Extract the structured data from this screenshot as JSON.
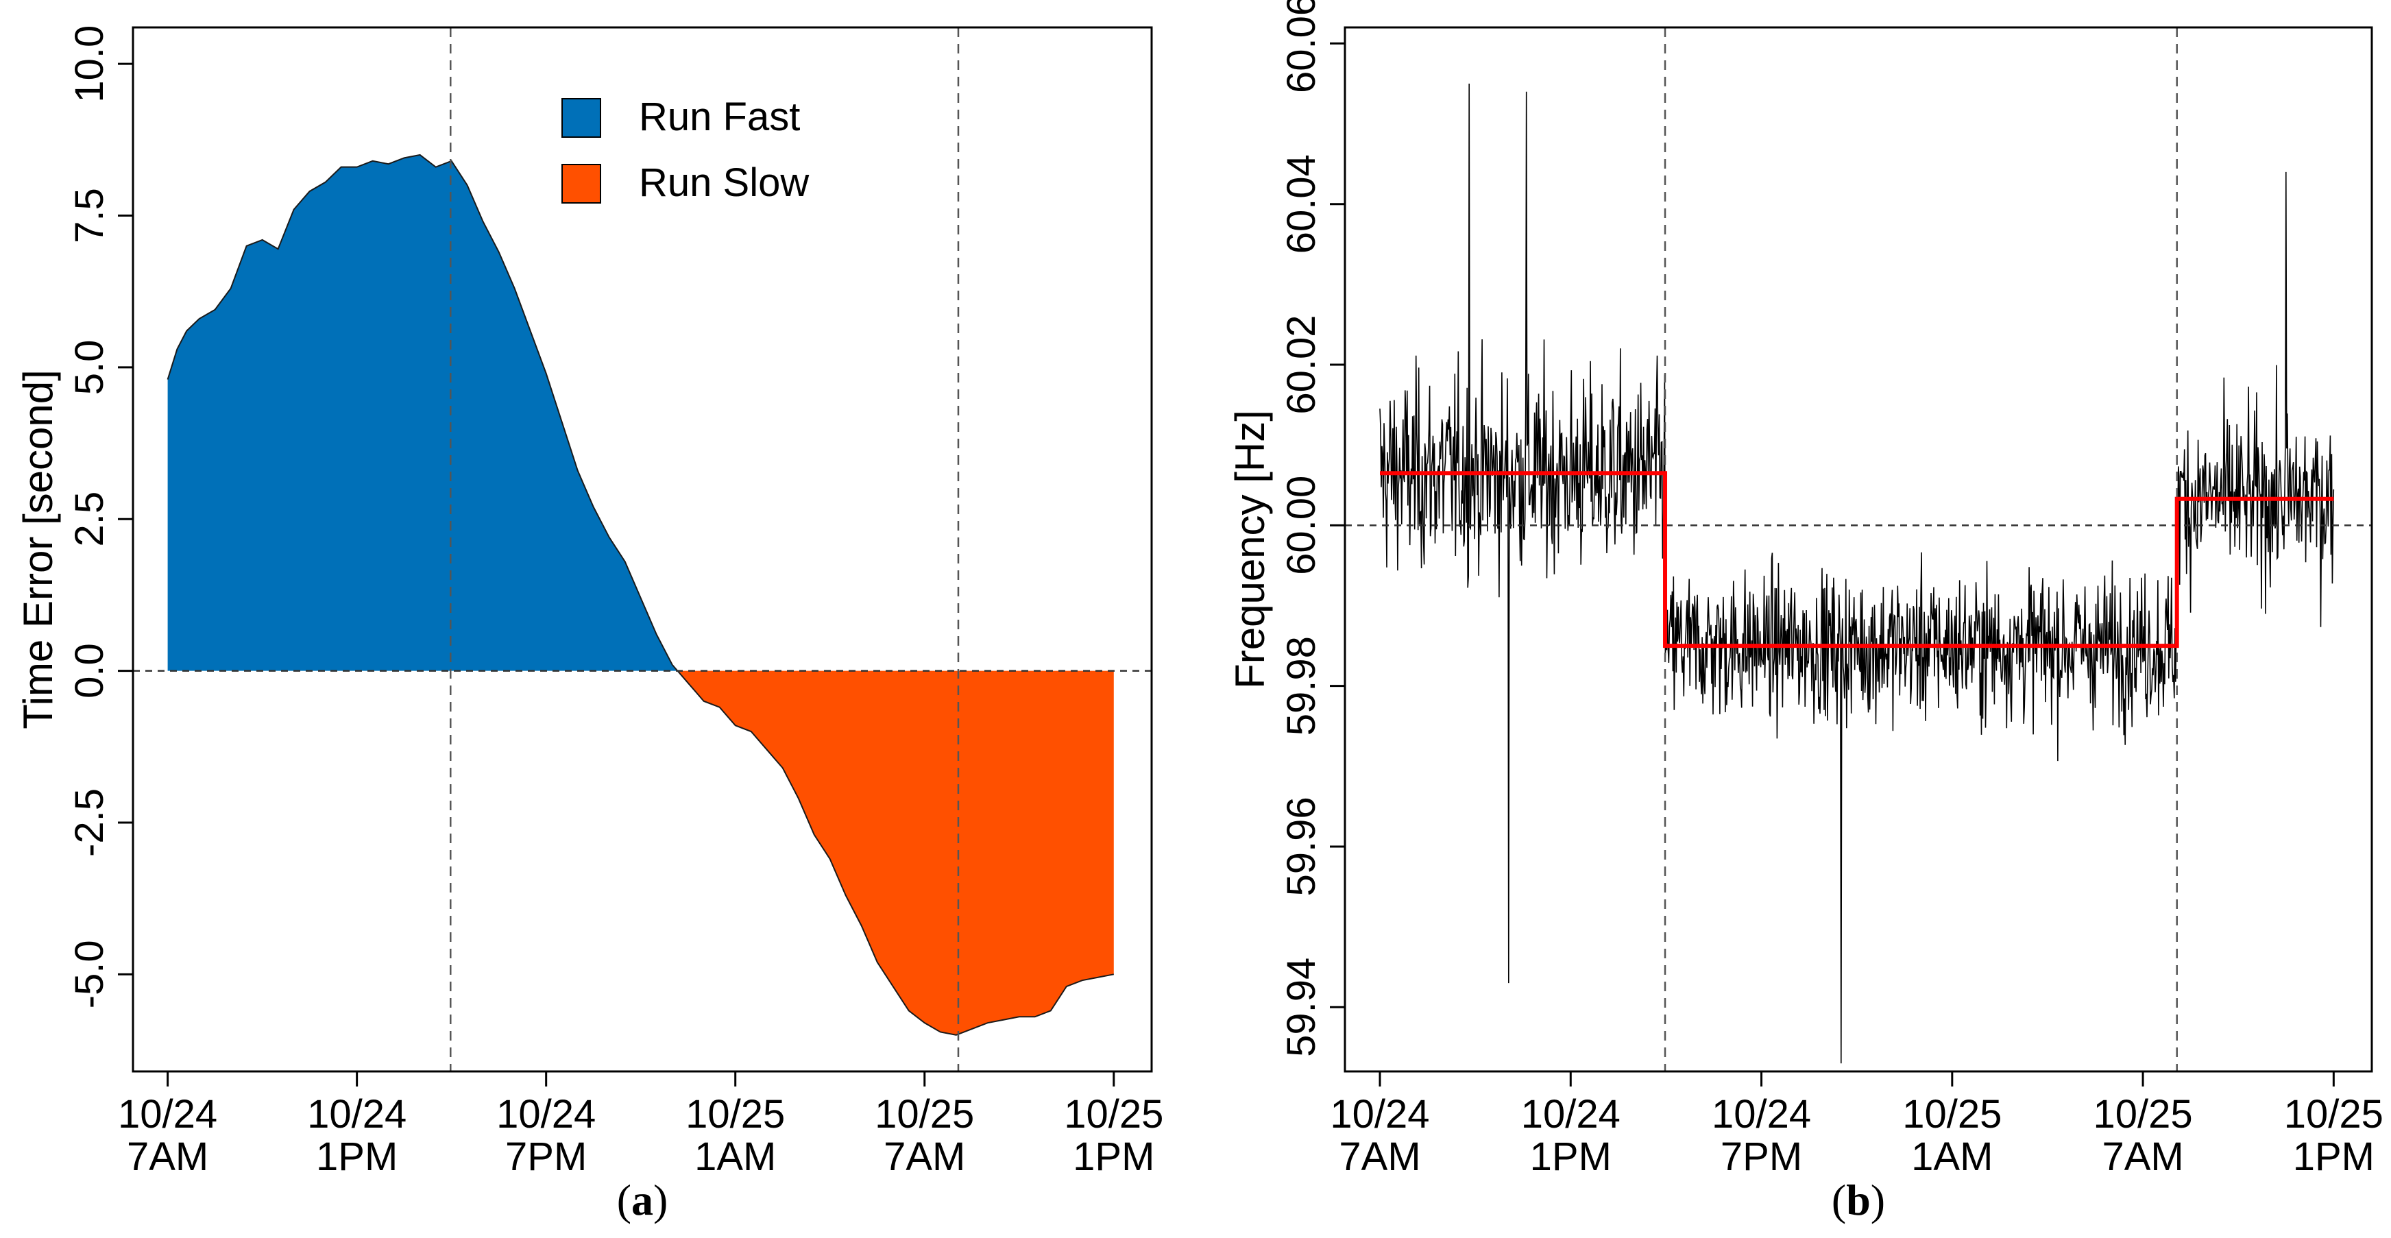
{
  "chart_data": [
    {
      "type": "area",
      "panel_label": "a",
      "ylabel": "Time Error [second]",
      "xlabel": "",
      "x_unit": "hours since 10/24 7AM",
      "xlim": [
        -1.1,
        31.2
      ],
      "ylim": [
        -6.6,
        10.6
      ],
      "yticks": [
        {
          "value": -5.0,
          "label": "-5.0"
        },
        {
          "value": -2.5,
          "label": "-2.5"
        },
        {
          "value": 0.0,
          "label": "0.0"
        },
        {
          "value": 2.5,
          "label": "2.5"
        },
        {
          "value": 5.0,
          "label": "5.0"
        },
        {
          "value": 7.5,
          "label": "7.5"
        },
        {
          "value": 10.0,
          "label": "10.0"
        }
      ],
      "xticks": [
        {
          "value": 0,
          "line1": "10/24",
          "line2": "7AM"
        },
        {
          "value": 6,
          "line1": "10/24",
          "line2": "1PM"
        },
        {
          "value": 12,
          "line1": "10/24",
          "line2": "7PM"
        },
        {
          "value": 18,
          "line1": "10/25",
          "line2": "1AM"
        },
        {
          "value": 24,
          "line1": "10/25",
          "line2": "7AM"
        },
        {
          "value": 30,
          "line1": "10/25",
          "line2": "1PM"
        }
      ],
      "vlines": [
        8.97,
        25.07
      ],
      "hline": 0,
      "legend": {
        "placement": "top-center",
        "entries": [
          {
            "label": "Run Fast",
            "color": "#0070B8"
          },
          {
            "label": "Run Slow",
            "color": "#FF5000"
          }
        ]
      },
      "series": [
        {
          "name": "Time Error",
          "x": [
            0,
            0.3,
            0.6,
            1.0,
            1.5,
            2.0,
            2.5,
            3.0,
            3.5,
            4.0,
            4.5,
            5.0,
            5.5,
            6.0,
            6.5,
            7.0,
            7.5,
            8.0,
            8.5,
            9.0,
            9.5,
            10.0,
            10.5,
            11.0,
            11.5,
            12.0,
            12.5,
            13.0,
            13.5,
            14.0,
            14.5,
            15.0,
            15.5,
            16.0,
            16.5,
            17.0,
            17.5,
            18.0,
            18.5,
            19.0,
            19.5,
            20.0,
            20.5,
            21.0,
            21.5,
            22.0,
            22.5,
            23.0,
            23.5,
            24.0,
            24.5,
            25.0,
            25.5,
            26.0,
            26.5,
            27.0,
            27.5,
            28.0,
            28.5,
            29.0,
            29.5,
            30.0
          ],
          "values": [
            4.8,
            5.3,
            5.6,
            5.8,
            5.95,
            6.3,
            7.0,
            7.1,
            6.95,
            7.6,
            7.9,
            8.05,
            8.3,
            8.3,
            8.4,
            8.35,
            8.45,
            8.5,
            8.3,
            8.4,
            8.0,
            7.4,
            6.9,
            6.3,
            5.6,
            4.9,
            4.1,
            3.3,
            2.7,
            2.2,
            1.8,
            1.2,
            0.6,
            0.1,
            -0.2,
            -0.5,
            -0.6,
            -0.9,
            -1.0,
            -1.3,
            -1.6,
            -2.1,
            -2.7,
            -3.1,
            -3.7,
            -4.2,
            -4.8,
            -5.2,
            -5.6,
            -5.8,
            -5.95,
            -6.0,
            -5.9,
            -5.8,
            -5.75,
            -5.7,
            -5.7,
            -5.6,
            -5.2,
            -5.1,
            -5.05,
            -5.0
          ]
        }
      ]
    },
    {
      "type": "line",
      "panel_label": "b",
      "ylabel": "Frequency [Hz]",
      "xlabel": "",
      "x_unit": "hours since 10/24 7AM",
      "xlim": [
        -1.1,
        31.2
      ],
      "ylim": [
        59.932,
        60.062
      ],
      "yticks": [
        {
          "value": 59.94,
          "label": "59.94"
        },
        {
          "value": 59.96,
          "label": "59.96"
        },
        {
          "value": 59.98,
          "label": "59.98"
        },
        {
          "value": 60.0,
          "label": "60.00"
        },
        {
          "value": 60.02,
          "label": "60.02"
        },
        {
          "value": 60.04,
          "label": "60.04"
        },
        {
          "value": 60.06,
          "label": "60.06"
        }
      ],
      "xticks": [
        {
          "value": 0,
          "line1": "10/24",
          "line2": "7AM"
        },
        {
          "value": 6,
          "line1": "10/24",
          "line2": "1PM"
        },
        {
          "value": 12,
          "line1": "10/24",
          "line2": "7PM"
        },
        {
          "value": 18,
          "line1": "10/25",
          "line2": "1AM"
        },
        {
          "value": 24,
          "line1": "10/25",
          "line2": "7AM"
        },
        {
          "value": 30,
          "line1": "10/25",
          "line2": "1PM"
        }
      ],
      "vlines": [
        8.97,
        25.07
      ],
      "hline": 60.0,
      "series": [
        {
          "name": "Frequency",
          "color": "#000000",
          "segments": [
            {
              "x_start": 0,
              "x_end": 8.97,
              "mean": 60.0065,
              "spread": 0.016
            },
            {
              "x_start": 8.97,
              "x_end": 25.07,
              "mean": 59.985,
              "spread": 0.012
            },
            {
              "x_start": 25.07,
              "x_end": 30,
              "mean": 60.0033,
              "spread": 0.014
            }
          ],
          "extremes": [
            {
              "x": 2.8,
              "value": 60.055
            },
            {
              "x": 4.6,
              "value": 60.054
            },
            {
              "x": 4.05,
              "value": 59.943
            },
            {
              "x": 14.5,
              "value": 59.933
            },
            {
              "x": 28.5,
              "value": 60.044
            }
          ]
        },
        {
          "name": "Average",
          "color": "#FF0000",
          "step": true,
          "x": [
            0,
            8.97,
            8.97,
            25.07,
            25.07,
            30
          ],
          "values": [
            60.0065,
            60.0065,
            59.985,
            59.985,
            60.0033,
            60.0033
          ]
        }
      ]
    }
  ]
}
